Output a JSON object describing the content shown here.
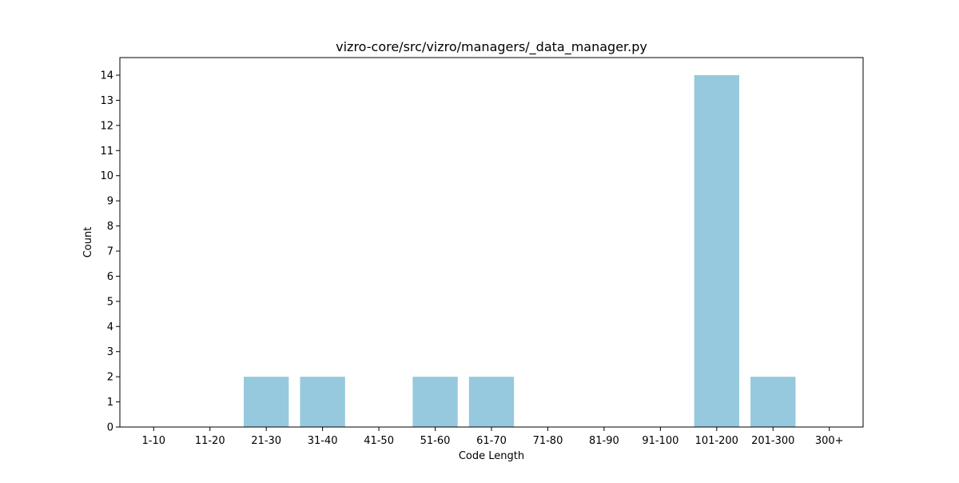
{
  "chart_data": {
    "type": "bar",
    "title": "vizro-core/src/vizro/managers/_data_manager.py",
    "xlabel": "Code Length",
    "ylabel": "Count",
    "categories": [
      "1-10",
      "11-20",
      "21-30",
      "31-40",
      "41-50",
      "51-60",
      "61-70",
      "71-80",
      "81-90",
      "91-100",
      "101-200",
      "201-300",
      "300+"
    ],
    "values": [
      0,
      0,
      2,
      2,
      0,
      2,
      2,
      0,
      0,
      0,
      14,
      2,
      0
    ],
    "ylim": [
      0,
      14.7
    ],
    "yticks": [
      0,
      1,
      2,
      3,
      4,
      5,
      6,
      7,
      8,
      9,
      10,
      11,
      12,
      13,
      14
    ],
    "bar_color": "#96c9de",
    "grid": false,
    "legend": "none"
  }
}
